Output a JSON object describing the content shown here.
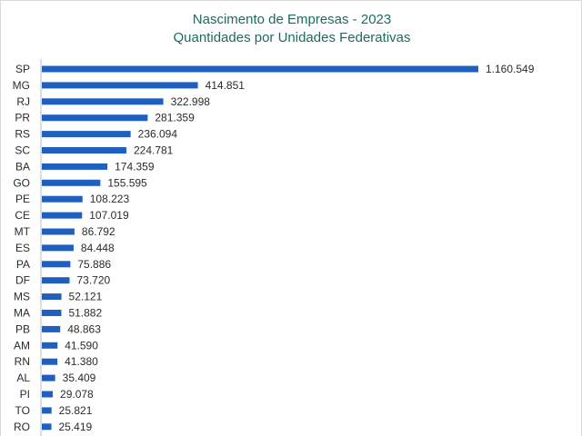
{
  "chart_data": {
    "type": "bar",
    "orientation": "horizontal",
    "title": "Nascimento de Empresas - 2023",
    "subtitle": "Quantidades por Unidades Federativas",
    "categories": [
      "SP",
      "MG",
      "RJ",
      "PR",
      "RS",
      "SC",
      "BA",
      "GO",
      "PE",
      "CE",
      "MT",
      "ES",
      "PA",
      "DF",
      "MS",
      "MA",
      "PB",
      "AM",
      "RN",
      "AL",
      "PI",
      "TO",
      "RO"
    ],
    "values": [
      1160549,
      414851,
      322998,
      281359,
      236094,
      224781,
      174359,
      155595,
      108223,
      107019,
      86792,
      84448,
      75886,
      73720,
      52121,
      51882,
      48863,
      41590,
      41380,
      35409,
      29078,
      25821,
      25419
    ],
    "value_labels": [
      "1.160.549",
      "414.851",
      "322.998",
      "281.359",
      "236.094",
      "224.781",
      "174.359",
      "155.595",
      "108.223",
      "107.019",
      "86.792",
      "84.448",
      "75.886",
      "73.720",
      "52.121",
      "51.882",
      "48.863",
      "41.590",
      "41.380",
      "35.409",
      "29.078",
      "25.821",
      "25.419"
    ],
    "xlim": [
      0,
      1160549
    ],
    "grid": false,
    "legend": "none",
    "bar_color": "#1f5fbf",
    "title_color": "#1d6b5f",
    "axis_color": "#bfbfbf"
  }
}
